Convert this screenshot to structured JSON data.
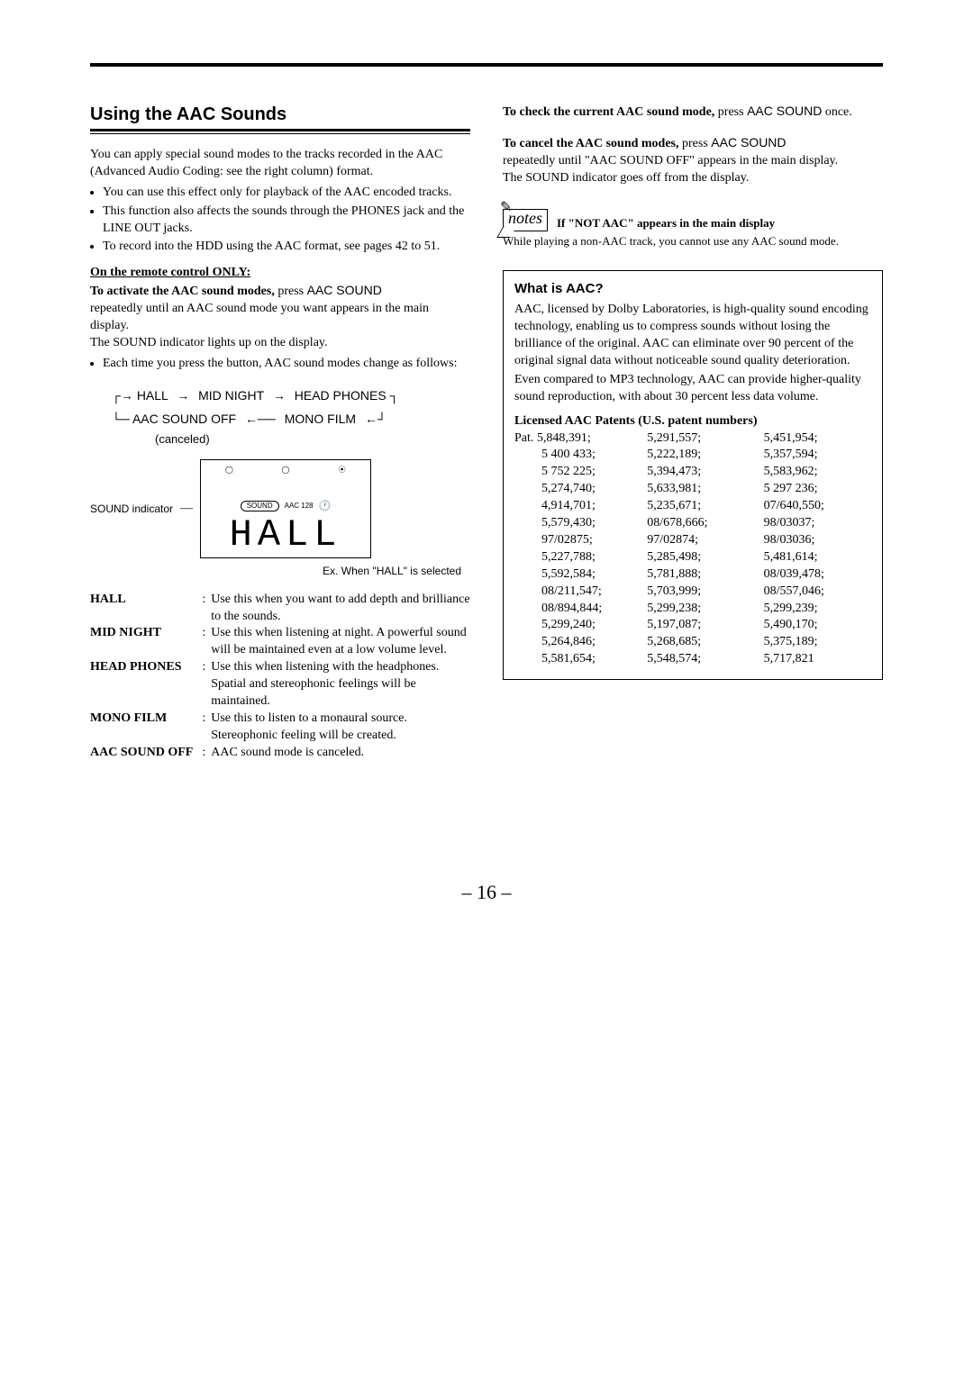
{
  "page_number": "– 16 –",
  "left": {
    "title": "Using the AAC Sounds",
    "intro": "You can apply special sound modes to the tracks recorded in the AAC (Advanced Audio Coding: see the right column) format.",
    "bullets": [
      "You can use this effect only for playback of the AAC encoded tracks.",
      "This function also affects the sounds through the PHONES jack and the LINE OUT jacks.",
      "To record into the HDD using the AAC format, see pages 42 to 51."
    ],
    "remote_only": "On the remote control ONLY:",
    "activate_bold": "To activate the AAC sound modes,",
    "activate_press": " press ",
    "activate_btn": "AAC SOUND",
    "activate_rest": "repeatedly until an AAC sound mode you want appears in the main display.",
    "indicator_line": "The SOUND indicator lights up on the display.",
    "each_time": "Each time you press the button, AAC sound modes change as follows:",
    "flow": {
      "r1a": "HALL",
      "r1b": "MID NIGHT",
      "r1c": "HEAD PHONES",
      "r2a": "AAC SOUND OFF",
      "r2b": "MONO FILM",
      "canceled": "(canceled)"
    },
    "display": {
      "label": "SOUND indicator",
      "aac128": "AAC 128",
      "sound_pill": "SOUND",
      "big": "HALL",
      "caption": "Ex. When \"HALL\" is selected"
    },
    "modes": [
      {
        "name": "HALL",
        "desc": "Use this when you want to add depth and brilliance to the sounds."
      },
      {
        "name": "MID NIGHT",
        "desc": "Use this when listening at night. A powerful sound will be maintained even at a low volume level."
      },
      {
        "name": "HEAD PHONES",
        "desc": "Use this when listening with the headphones. Spatial and stereophonic feelings will be maintained."
      },
      {
        "name": "MONO FILM",
        "desc": "Use this to listen to a monaural source. Stereophonic feeling will be created."
      },
      {
        "name": "AAC SOUND OFF",
        "desc": "AAC sound mode is canceled."
      }
    ]
  },
  "right": {
    "check_bold": "To check the current AAC sound mode,",
    "check_press": " press ",
    "check_btn": "AAC SOUND",
    "check_rest": " once.",
    "cancel_bold": "To cancel the AAC sound modes,",
    "cancel_press": " press ",
    "cancel_btn": "AAC SOUND",
    "cancel_rest": "repeatedly until \"AAC SOUND OFF\" appears in the main display.",
    "cancel_off": "The SOUND indicator goes off from the display.",
    "note_icon": "notes",
    "note_title": "If \"NOT AAC\" appears in the main display",
    "note_body": "While playing a non-AAC track, you cannot use any AAC sound mode.",
    "box": {
      "title": "What is AAC?",
      "p1": "AAC, licensed by Dolby Laboratories, is high-quality sound encoding technology, enabling us to compress sounds without losing the brilliance of the original. AAC can eliminate over 90 percent of the original signal data without noticeable sound quality deterioration.",
      "p2": "Even compared to MP3 technology, AAC can provide higher-quality sound reproduction, with about 30 percent less data volume.",
      "patents_head": "Licensed AAC Patents (U.S. patent numbers)",
      "patents": [
        [
          "Pat. 5,848,391;",
          "5,291,557;",
          "5,451,954;"
        ],
        [
          "5 400 433;",
          "5,222,189;",
          "5,357,594;"
        ],
        [
          "5 752 225;",
          "5,394,473;",
          "5,583,962;"
        ],
        [
          "5,274,740;",
          "5,633,981;",
          "5 297 236;"
        ],
        [
          "4,914,701;",
          "5,235,671;",
          "07/640,550;"
        ],
        [
          "5,579,430;",
          "08/678,666;",
          "98/03037;"
        ],
        [
          "97/02875;",
          "97/02874;",
          "98/03036;"
        ],
        [
          "5,227,788;",
          "5,285,498;",
          "5,481,614;"
        ],
        [
          "5,592,584;",
          "5,781,888;",
          "08/039,478;"
        ],
        [
          "08/211,547;",
          "5,703,999;",
          "08/557,046;"
        ],
        [
          "08/894,844;",
          "5,299,238;",
          "5,299,239;"
        ],
        [
          "5,299,240;",
          "5,197,087;",
          "5,490,170;"
        ],
        [
          "5,264,846;",
          "5,268,685;",
          "5,375,189;"
        ],
        [
          "5,581,654;",
          "5,548,574;",
          "5,717,821"
        ]
      ]
    }
  }
}
